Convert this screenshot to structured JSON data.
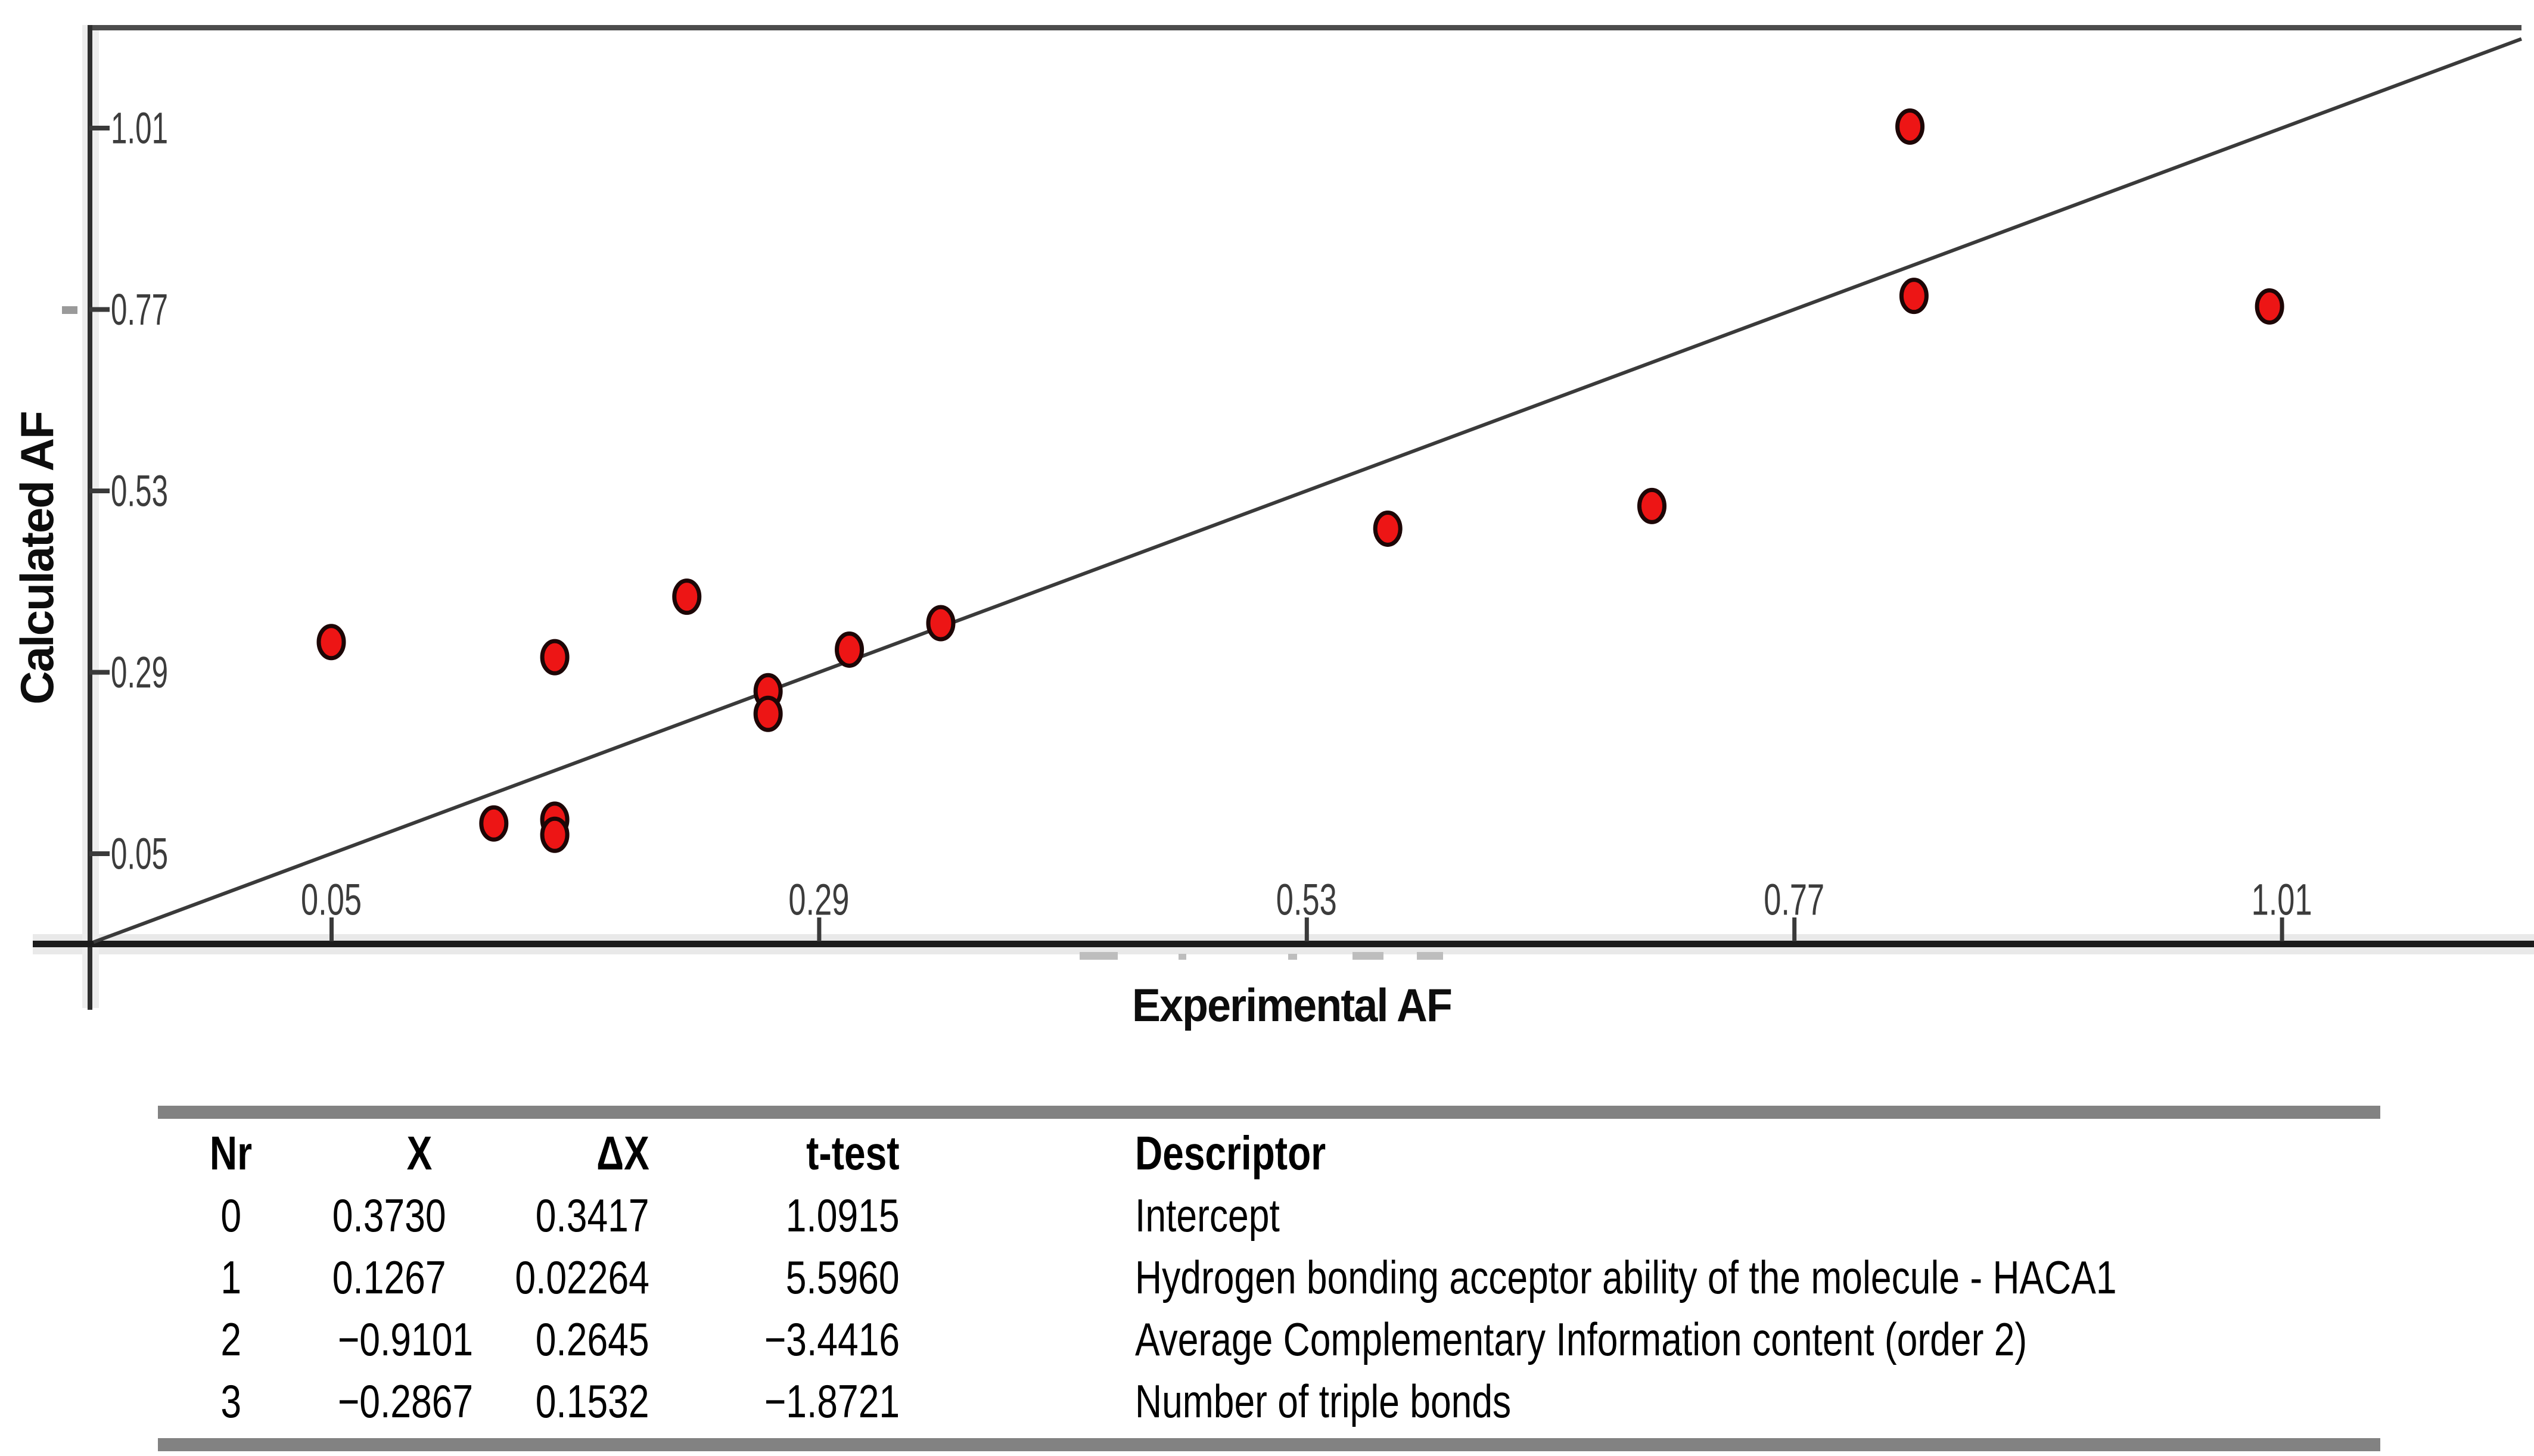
{
  "figure": {
    "x_axis_title": "Experimental AF",
    "y_axis_title": "Calculated AF"
  },
  "chart_data": {
    "type": "scatter",
    "title": "",
    "xlabel": "Experimental AF",
    "ylabel": "Calculated AF",
    "x_ticks": [
      "0.05",
      "0.29",
      "0.53",
      "0.77",
      "1.01"
    ],
    "y_ticks": [
      "0.05",
      "0.29",
      "0.53",
      "0.77",
      "1.01"
    ],
    "xlim": [
      -0.07,
      1.13
    ],
    "ylim": [
      -0.07,
      1.19
    ],
    "grid": false,
    "legend": false,
    "point_color": "#ed1515",
    "point_edge_color": "#1d0606",
    "line_color": "#3a3a3a",
    "axis_color": "#1c1c1c",
    "identity_line": {
      "slope": 1,
      "intercept": 0,
      "t_min": -0.067,
      "t_max": 1.128
    },
    "points": [
      {
        "x": 0.05,
        "y": 0.33
      },
      {
        "x": 0.13,
        "y": 0.09
      },
      {
        "x": 0.16,
        "y": 0.31
      },
      {
        "x": 0.16,
        "y": 0.095
      },
      {
        "x": 0.16,
        "y": 0.075
      },
      {
        "x": 0.225,
        "y": 0.39
      },
      {
        "x": 0.265,
        "y": 0.265
      },
      {
        "x": 0.265,
        "y": 0.235
      },
      {
        "x": 0.305,
        "y": 0.32
      },
      {
        "x": 0.35,
        "y": 0.355
      },
      {
        "x": 0.57,
        "y": 0.48
      },
      {
        "x": 0.7,
        "y": 0.51
      },
      {
        "x": 0.827,
        "y": 1.012
      },
      {
        "x": 0.829,
        "y": 0.788
      },
      {
        "x": 1.004,
        "y": 0.774
      }
    ]
  },
  "table": {
    "headers": [
      "Nr",
      "X",
      "ΔX",
      "t-test",
      "Descriptor"
    ],
    "rows": [
      [
        "0",
        "0.3730",
        "0.3417",
        "1.0915",
        "Intercept"
      ],
      [
        "1",
        "0.1267",
        "0.02264",
        "5.5960",
        "Hydrogen bonding acceptor ability of the molecule - HACA1"
      ],
      [
        "2",
        "−0.9101",
        "0.2645",
        "−3.4416",
        "Average Complementary Information content (order 2)"
      ],
      [
        "3",
        "−0.2867",
        "0.1532",
        "−1.8721",
        "Number of triple bonds"
      ]
    ]
  }
}
